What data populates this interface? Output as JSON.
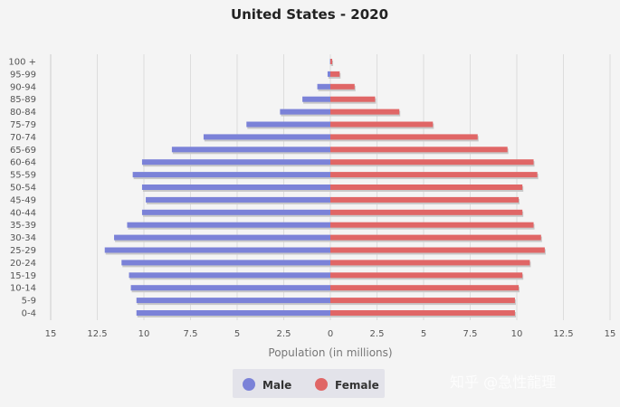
{
  "chart_data": {
    "type": "bar",
    "orientation": "horizontal",
    "title": "United States - 2020",
    "xlabel": "Population (in millions)",
    "categories": [
      "100 +",
      "95-99",
      "90-94",
      "85-89",
      "80-84",
      "75-79",
      "70-74",
      "65-69",
      "60-64",
      "55-59",
      "50-54",
      "45-49",
      "40-44",
      "35-39",
      "30-34",
      "25-29",
      "20-24",
      "15-19",
      "10-14",
      "5-9",
      "0-4"
    ],
    "series": [
      {
        "name": "Male",
        "color": "#7b82d8",
        "values": [
          0.02,
          0.15,
          0.7,
          1.5,
          2.7,
          4.5,
          6.8,
          8.5,
          10.1,
          10.6,
          10.1,
          9.9,
          10.1,
          10.9,
          11.6,
          12.1,
          11.2,
          10.8,
          10.7,
          10.4,
          10.4
        ]
      },
      {
        "name": "Female",
        "color": "#e06666",
        "values": [
          0.1,
          0.5,
          1.3,
          2.4,
          3.7,
          5.5,
          7.9,
          9.5,
          10.9,
          11.1,
          10.3,
          10.1,
          10.3,
          10.9,
          11.3,
          11.5,
          10.7,
          10.3,
          10.1,
          9.9,
          9.9
        ]
      }
    ],
    "xticks": [
      15,
      12.5,
      10,
      7.5,
      5,
      2.5,
      0,
      2.5,
      5,
      7.5,
      10,
      12.5,
      15
    ],
    "xlim": [
      -15,
      15
    ],
    "grid": true,
    "legend": "bottom-center"
  },
  "watermark": "知乎 @急性龍理"
}
